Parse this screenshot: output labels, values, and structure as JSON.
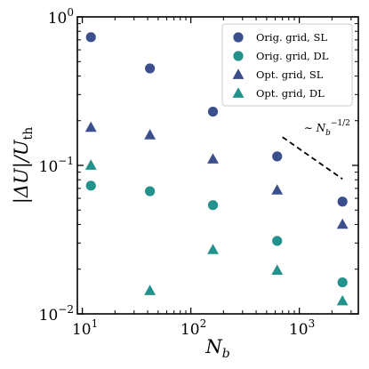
{
  "chart_data": {
    "type": "scatter",
    "xlabel": "N_b",
    "ylabel": "|ΔU|/U_th",
    "xscale": "log",
    "yscale": "log",
    "xlim": [
      9,
      3500
    ],
    "ylim": [
      0.01,
      1
    ],
    "grid": false,
    "legend_position": "top-right",
    "x_ticks": [
      {
        "value": 10,
        "base": "10",
        "exp": "1"
      },
      {
        "value": 100,
        "base": "10",
        "exp": "2"
      },
      {
        "value": 1000,
        "base": "10",
        "exp": "3"
      }
    ],
    "y_ticks": [
      {
        "value": 0.01,
        "base": "10",
        "exp": "−2"
      },
      {
        "value": 0.1,
        "base": "10",
        "exp": "−1"
      },
      {
        "value": 1,
        "base": "10",
        "exp": "0"
      }
    ],
    "series": [
      {
        "name": "Orig. grid, SL",
        "marker": "circle",
        "color": "#3b4f8c",
        "x": [
          12,
          42,
          160,
          625,
          2500
        ],
        "y": [
          0.73,
          0.45,
          0.23,
          0.115,
          0.057
        ]
      },
      {
        "name": "Orig. grid, DL",
        "marker": "circle",
        "color": "#23918c",
        "x": [
          12,
          42,
          160,
          625,
          2500
        ],
        "y": [
          0.073,
          0.067,
          0.054,
          0.031,
          0.0163
        ]
      },
      {
        "name": "Opt. grid, SL",
        "marker": "triangle",
        "color": "#3b4f8c",
        "x": [
          12,
          42,
          160,
          625,
          2500
        ],
        "y": [
          0.18,
          0.16,
          0.11,
          0.068,
          0.04
        ]
      },
      {
        "name": "Opt. grid, DL",
        "marker": "triangle",
        "color": "#23918c",
        "x": [
          12,
          42,
          160,
          625,
          2500
        ],
        "y": [
          0.1,
          0.0143,
          0.027,
          0.0196,
          0.0122
        ]
      }
    ],
    "reference_line": {
      "label_prefix": "∼ N",
      "label_sub": "b",
      "label_sup": "−1/2",
      "x": [
        700,
        2500
      ],
      "y": [
        0.155,
        0.081
      ],
      "style": "dashed",
      "color": "#000000"
    }
  }
}
